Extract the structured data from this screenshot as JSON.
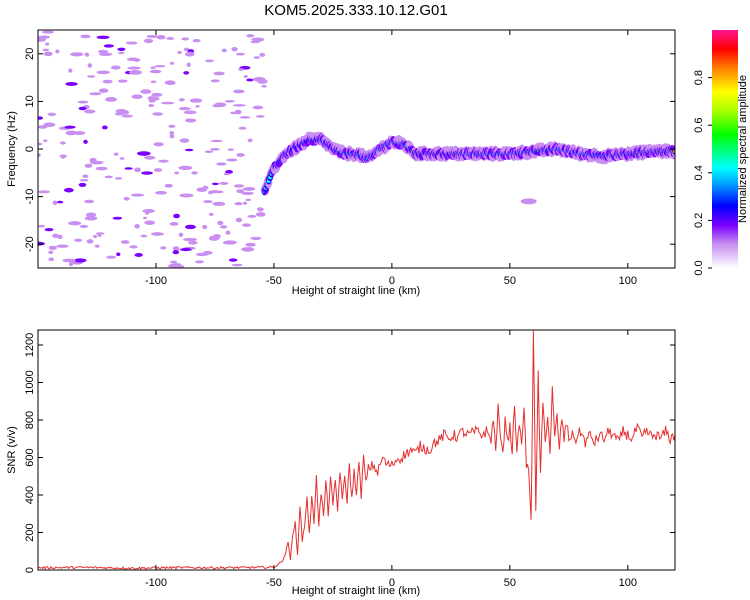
{
  "title": "KOM5.2025.333.10.12.G01",
  "chart_data": [
    {
      "type": "heatmap",
      "xlabel": "Height of straight line (km)",
      "ylabel": "Frequency (Hz)",
      "xlim": [
        -150,
        120
      ],
      "ylim": [
        -25,
        25
      ],
      "xticks": [
        -100,
        -50,
        0,
        50,
        100
      ],
      "yticks": [
        -20,
        -10,
        0,
        10,
        20
      ],
      "xtick_labels": [
        "-100",
        "-50",
        "0",
        "50",
        "100"
      ],
      "ytick_labels": [
        "-20",
        "-10",
        "0",
        "10",
        "20"
      ],
      "ridge": {
        "x": [
          -54,
          -50,
          -45,
          -40,
          -35,
          -30,
          -25,
          -20,
          -15,
          -10,
          -5,
          0,
          5,
          10,
          15,
          20,
          30,
          40,
          50,
          60,
          70,
          80,
          90,
          100,
          110,
          120
        ],
        "y": [
          -9,
          -4,
          -1,
          0.5,
          2,
          2,
          0,
          -1,
          -1,
          -2,
          0,
          1.5,
          1,
          -1,
          -1,
          -1,
          -1,
          -1,
          -1,
          -0.5,
          0,
          -1,
          -1.5,
          -1,
          -0.5,
          -0.5
        ]
      },
      "colorbar": {
        "label": "Normalized spectral amplitude",
        "range": [
          0,
          1
        ],
        "ticks": [
          0.0,
          0.2,
          0.4,
          0.6,
          0.8
        ],
        "tick_labels": [
          "0.0",
          "0.2",
          "0.4",
          "0.6",
          "0.8"
        ],
        "colors": [
          "#ffffff",
          "#c88ff0",
          "#7a00ff",
          "#0000ff",
          "#00ffff",
          "#00ff00",
          "#ffff00",
          "#ff8000",
          "#ff0000",
          "#ff1493"
        ]
      }
    },
    {
      "type": "line",
      "xlabel": "Height of straight line (km)",
      "ylabel": "SNR (v/v)",
      "xlim": [
        -150,
        120
      ],
      "ylim": [
        0,
        1280
      ],
      "xticks": [
        -100,
        -50,
        0,
        50,
        100
      ],
      "yticks": [
        0,
        200,
        400,
        600,
        800,
        1000,
        1200
      ],
      "xtick_labels": [
        "-100",
        "-50",
        "0",
        "50",
        "100"
      ],
      "ytick_labels": [
        "0",
        "200",
        "400",
        "600",
        "800",
        "1000",
        "1200"
      ],
      "color": "#e53030",
      "series": [
        {
          "x": [
            -150,
            -130,
            -110,
            -90,
            -70,
            -55,
            -50,
            -47,
            -45,
            -44,
            -43,
            -42,
            -41,
            -40,
            -39,
            -38,
            -37,
            -36,
            -35,
            -34,
            -33,
            -32,
            -31,
            -30,
            -29,
            -28,
            -27,
            -26,
            -25,
            -24,
            -23,
            -22,
            -21,
            -20,
            -19,
            -18,
            -17,
            -16,
            -15,
            -14,
            -13,
            -12,
            -11,
            -10,
            -8,
            -6,
            -4,
            -2,
            0,
            2,
            4,
            6,
            8,
            10,
            12,
            14,
            16,
            18,
            20,
            22,
            24,
            26,
            28,
            30,
            32,
            34,
            36,
            38,
            40,
            42,
            43,
            44,
            45,
            46,
            47,
            48,
            49,
            50,
            51,
            52,
            53,
            54,
            55,
            56,
            57,
            58,
            59,
            60,
            61,
            62,
            63,
            64,
            65,
            66,
            67,
            68,
            69,
            70,
            71,
            72,
            73,
            74,
            75,
            76,
            78,
            80,
            82,
            84,
            86,
            88,
            90,
            92,
            94,
            96,
            98,
            100,
            102,
            104,
            106,
            108,
            110,
            112,
            114,
            116,
            118,
            120
          ],
          "y": [
            12,
            14,
            10,
            13,
            12,
            14,
            15,
            40,
            90,
            150,
            60,
            180,
            250,
            90,
            330,
            160,
            230,
            400,
            190,
            380,
            250,
            520,
            230,
            420,
            280,
            470,
            300,
            500,
            330,
            480,
            320,
            540,
            360,
            500,
            370,
            560,
            380,
            520,
            420,
            560,
            400,
            600,
            460,
            540,
            560,
            520,
            600,
            560,
            560,
            590,
            600,
            620,
            640,
            620,
            660,
            650,
            640,
            680,
            690,
            720,
            700,
            720,
            710,
            740,
            720,
            730,
            740,
            720,
            740,
            700,
            800,
            650,
            860,
            720,
            600,
            830,
            680,
            760,
            640,
            900,
            600,
            800,
            650,
            880,
            560,
            520,
            280,
            1280,
            300,
            1050,
            500,
            890,
            680,
            840,
            620,
            960,
            700,
            820,
            640,
            820,
            690,
            790,
            700,
            720,
            700,
            740,
            680,
            720,
            680,
            720,
            700,
            740,
            720,
            680,
            740,
            720,
            700,
            760,
            700,
            740,
            710,
            720,
            700,
            740,
            700,
            720
          ]
        }
      ]
    }
  ]
}
